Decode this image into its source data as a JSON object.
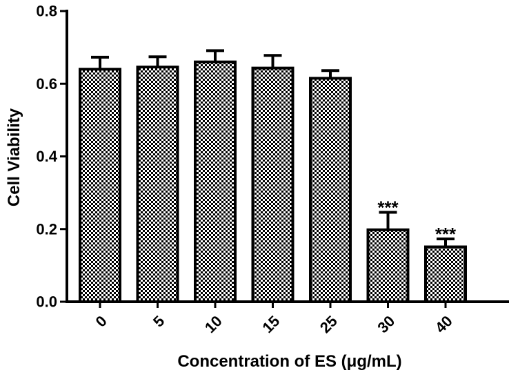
{
  "chart_data": {
    "type": "bar",
    "title": "",
    "xlabel": "Concentration of ES  (μg/mL)",
    "ylabel": "Cell Viability",
    "categories": [
      "0",
      "5",
      "10",
      "15",
      "25",
      "30",
      "40"
    ],
    "values": [
      0.64,
      0.646,
      0.66,
      0.643,
      0.615,
      0.198,
      0.151
    ],
    "error_upper": [
      0.033,
      0.028,
      0.031,
      0.035,
      0.021,
      0.048,
      0.022
    ],
    "annotations": [
      "",
      "",
      "",
      "",
      "",
      "***",
      "***"
    ],
    "ylim": [
      0,
      0.8
    ],
    "yticks": [
      0.0,
      0.2,
      0.4,
      0.6,
      0.8
    ],
    "ytick_labels": [
      "0.0",
      "0.2",
      "0.4",
      "0.6",
      "0.8"
    ],
    "bar_pattern": "checkerboard",
    "bar_color": "#000000",
    "grid": false,
    "legend": "none"
  }
}
